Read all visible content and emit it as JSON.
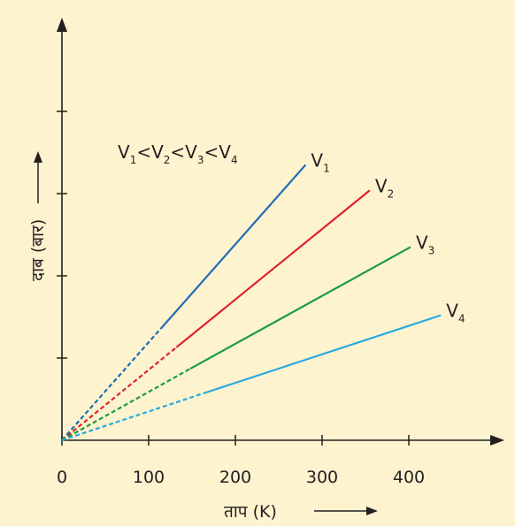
{
  "chart_data": {
    "type": "line",
    "xlabel": "ताप (K)",
    "ylabel": "दाब (बार)",
    "annotation": {
      "parts": [
        "V",
        "1",
        "<V",
        "2",
        "<V",
        "3",
        "<V",
        "4"
      ]
    },
    "x_ticks": [
      "0",
      "100",
      "200",
      "300",
      "400"
    ],
    "xlim": [
      0,
      480
    ],
    "y_ticks_labeled": false,
    "grid": false,
    "line_style": "dashed at low temperature, solid at higher temperature",
    "series": [
      {
        "name": "V",
        "sub": "1",
        "color": "#1d6db5",
        "points": [
          [
            0,
            0
          ],
          [
            115,
            1.37
          ],
          [
            281,
            3.35
          ]
        ],
        "dashed_until": 115
      },
      {
        "name": "V",
        "sub": "2",
        "color": "#e0242a",
        "points": [
          [
            0,
            0
          ],
          [
            132,
            1.13
          ],
          [
            355,
            3.04
          ]
        ],
        "dashed_until": 132
      },
      {
        "name": "V",
        "sub": "3",
        "color": "#1a9a48",
        "points": [
          [
            0,
            0
          ],
          [
            148,
            0.87
          ],
          [
            402,
            2.35
          ]
        ],
        "dashed_until": 148
      },
      {
        "name": "V",
        "sub": "4",
        "color": "#29a8e0",
        "points": [
          [
            0,
            0
          ],
          [
            163,
            0.57
          ],
          [
            437,
            1.52
          ]
        ],
        "dashed_until": 163
      }
    ]
  }
}
